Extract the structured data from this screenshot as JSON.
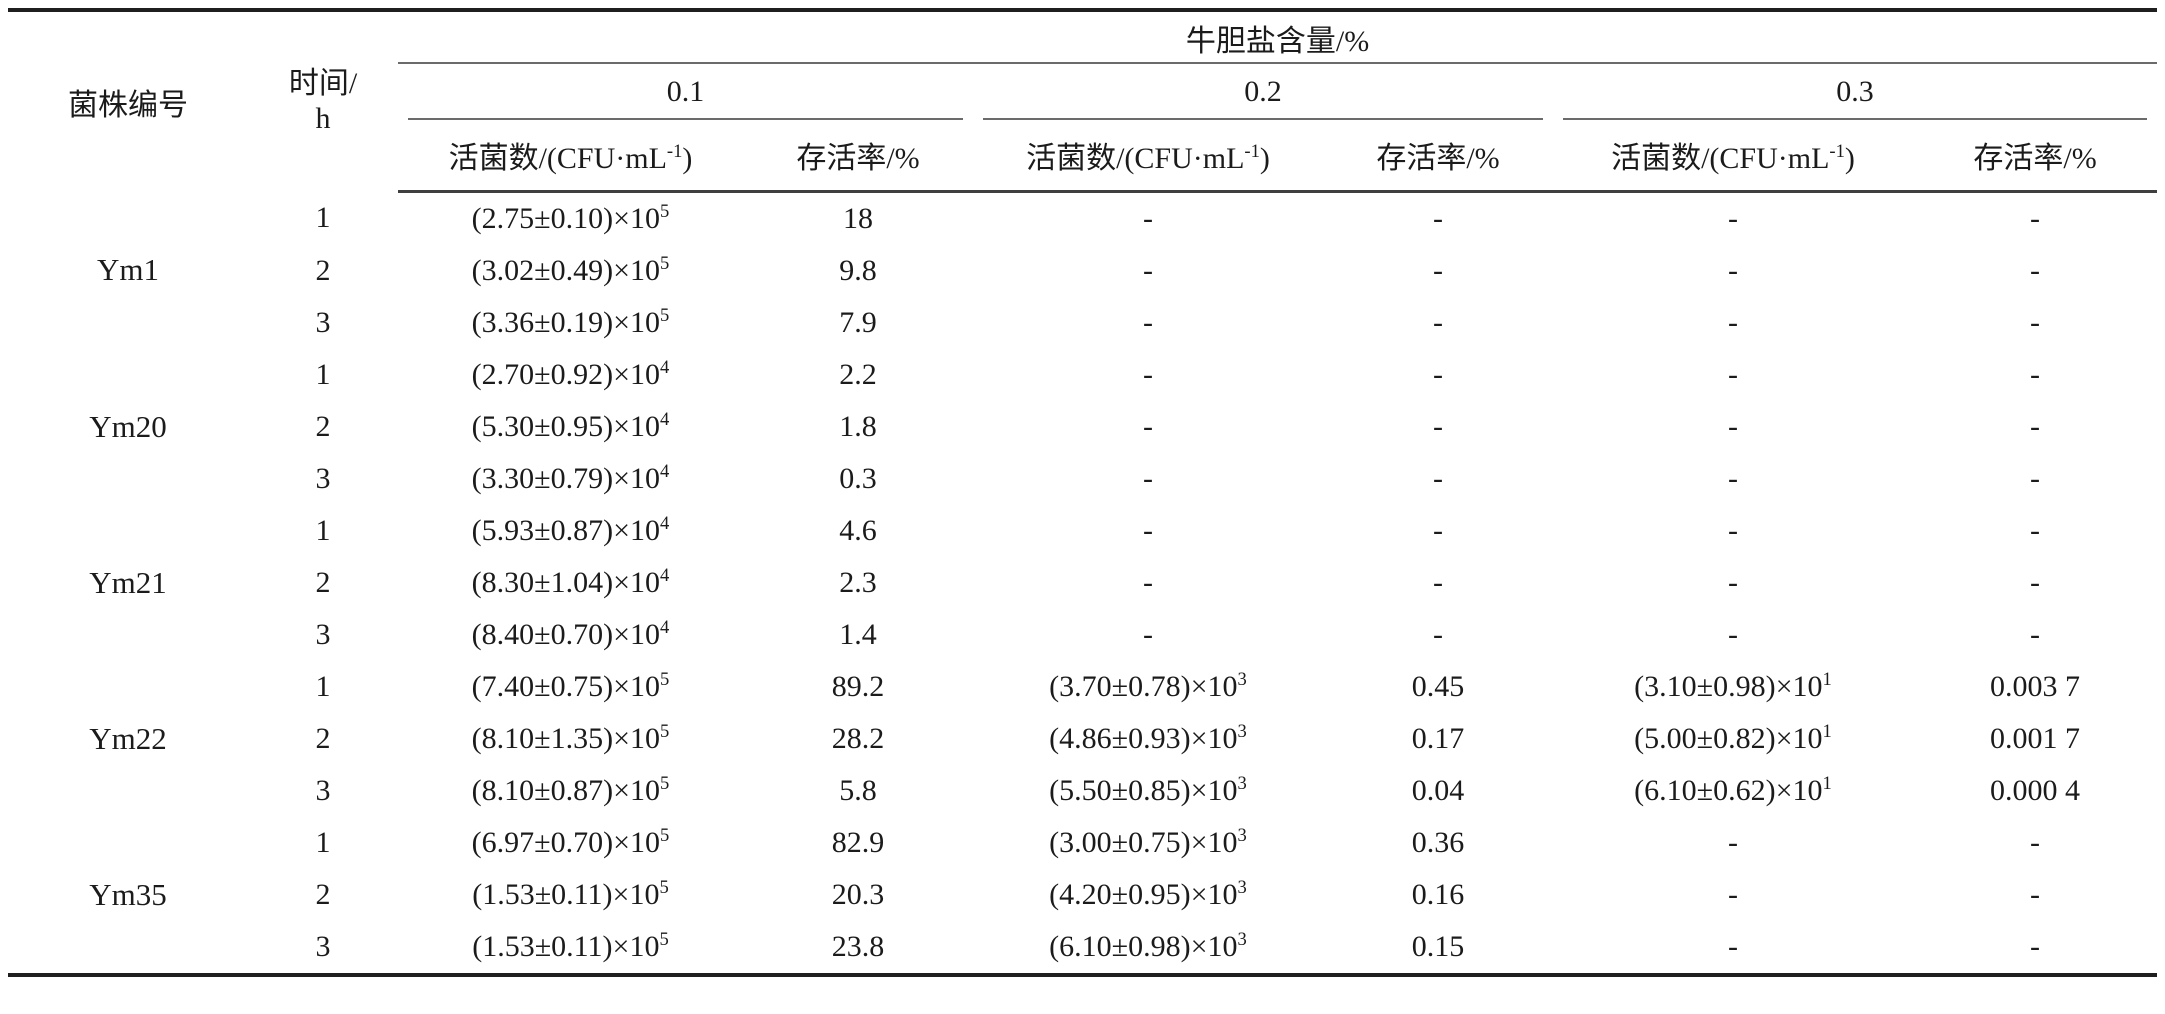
{
  "page": {
    "background": "#ffffff",
    "text_color": "#1b1b1b",
    "rule_color_thick": "#1f1f1f",
    "rule_color_thin": "#6b6b6b"
  },
  "table": {
    "header": {
      "strain_label": "菌株编号",
      "time_label_lines": [
        "时间/",
        "h"
      ],
      "group_label": "牛胆盐含量/%",
      "concentrations": [
        "0.1",
        "0.2",
        "0.3"
      ],
      "viable_count_label_parts": [
        "活菌数/(CFU·mL",
        {
          "sup": "-1"
        },
        ")"
      ],
      "survival_label": "存活率/%"
    },
    "groups": [
      {
        "strain": "Ym1",
        "rows": [
          {
            "time": "1",
            "cells": [
              [
                "(2.75±0.10)×10",
                {
                  "sup": "5"
                }
              ],
              "18",
              "-",
              "-",
              "-",
              "-"
            ]
          },
          {
            "time": "2",
            "cells": [
              [
                "(3.02±0.49)×10",
                {
                  "sup": "5"
                }
              ],
              "9.8",
              "-",
              "-",
              "-",
              "-"
            ]
          },
          {
            "time": "3",
            "cells": [
              [
                "(3.36±0.19)×10",
                {
                  "sup": "5"
                }
              ],
              "7.9",
              "-",
              "-",
              "-",
              "-"
            ]
          }
        ]
      },
      {
        "strain": "Ym20",
        "rows": [
          {
            "time": "1",
            "cells": [
              [
                "(2.70±0.92)×10",
                {
                  "sup": "4"
                }
              ],
              "2.2",
              "-",
              "-",
              "-",
              "-"
            ]
          },
          {
            "time": "2",
            "cells": [
              [
                "(5.30±0.95)×10",
                {
                  "sup": "4"
                }
              ],
              "1.8",
              "-",
              "-",
              "-",
              "-"
            ]
          },
          {
            "time": "3",
            "cells": [
              [
                "(3.30±0.79)×10",
                {
                  "sup": "4"
                }
              ],
              "0.3",
              "-",
              "-",
              "-",
              "-"
            ]
          }
        ]
      },
      {
        "strain": "Ym21",
        "rows": [
          {
            "time": "1",
            "cells": [
              [
                "(5.93±0.87)×10",
                {
                  "sup": "4"
                }
              ],
              "4.6",
              "-",
              "-",
              "-",
              "-"
            ]
          },
          {
            "time": "2",
            "cells": [
              [
                "(8.30±1.04)×10",
                {
                  "sup": "4"
                }
              ],
              "2.3",
              "-",
              "-",
              "-",
              "-"
            ]
          },
          {
            "time": "3",
            "cells": [
              [
                "(8.40±0.70)×10",
                {
                  "sup": "4"
                }
              ],
              "1.4",
              "-",
              "-",
              "-",
              "-"
            ]
          }
        ]
      },
      {
        "strain": "Ym22",
        "rows": [
          {
            "time": "1",
            "cells": [
              [
                "(7.40±0.75)×10",
                {
                  "sup": "5"
                }
              ],
              "89.2",
              [
                "(3.70±0.78)×10",
                {
                  "sup": "3"
                }
              ],
              "0.45",
              [
                "(3.10±0.98)×10",
                {
                  "sup": "1"
                }
              ],
              "0.003 7"
            ]
          },
          {
            "time": "2",
            "cells": [
              [
                "(8.10±1.35)×10",
                {
                  "sup": "5"
                }
              ],
              "28.2",
              [
                "(4.86±0.93)×10",
                {
                  "sup": "3"
                }
              ],
              "0.17",
              [
                "(5.00±0.82)×10",
                {
                  "sup": "1"
                }
              ],
              "0.001 7"
            ]
          },
          {
            "time": "3",
            "cells": [
              [
                "(8.10±0.87)×10",
                {
                  "sup": "5"
                }
              ],
              "5.8",
              [
                "(5.50±0.85)×10",
                {
                  "sup": "3"
                }
              ],
              "0.04",
              [
                "(6.10±0.62)×10",
                {
                  "sup": "1"
                }
              ],
              "0.000 4"
            ]
          }
        ]
      },
      {
        "strain": "Ym35",
        "rows": [
          {
            "time": "1",
            "cells": [
              [
                "(6.97±0.70)×10",
                {
                  "sup": "5"
                }
              ],
              "82.9",
              [
                "(3.00±0.75)×10",
                {
                  "sup": "3"
                }
              ],
              "0.36",
              "-",
              "-"
            ]
          },
          {
            "time": "2",
            "cells": [
              [
                "(1.53±0.11)×10",
                {
                  "sup": "5"
                }
              ],
              "20.3",
              [
                "(4.20±0.95)×10",
                {
                  "sup": "3"
                }
              ],
              "0.16",
              "-",
              "-"
            ]
          },
          {
            "time": "3",
            "cells": [
              [
                "(1.53±0.11)×10",
                {
                  "sup": "5"
                }
              ],
              "23.8",
              [
                "(6.10±0.98)×10",
                {
                  "sup": "3"
                }
              ],
              "0.15",
              "-",
              "-"
            ]
          }
        ]
      }
    ]
  }
}
